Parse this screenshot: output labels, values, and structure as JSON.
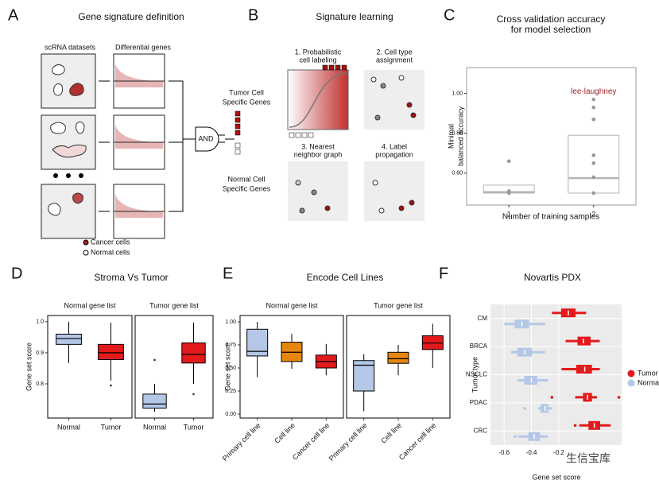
{
  "panels": {
    "a": {
      "letter": "A",
      "title": "Gene signature definition",
      "col1": "scRNA datasets",
      "col2": "Differential genes",
      "tumor": [
        "Tumor Cell",
        "Specific Genes"
      ],
      "gate": "AND",
      "normal": [
        "Normal Cell",
        "Specific Genes"
      ],
      "legend": [
        "Cancer cells",
        "Normal cells"
      ]
    },
    "b": {
      "letter": "B",
      "title": "Signature learning",
      "steps": [
        [
          "1. Probabilistic",
          "cell labeling"
        ],
        [
          "2. Cell type",
          "assignment"
        ],
        [
          "3. Nearest",
          "neighbor graph"
        ],
        [
          "4. Label",
          "propagation"
        ]
      ]
    }
  },
  "watermark": "生信宝库",
  "chart_data": [
    {
      "type": "box",
      "panel": "C",
      "title": [
        "Cross validation accuracy",
        "for model selection"
      ],
      "xlabel": "Number of training samples",
      "ylabel": [
        "Minimal",
        "balanced accuracy"
      ],
      "ylim": [
        0.44,
        1.13
      ],
      "yticks": [
        {
          "value": 0.6,
          "label": "0.60"
        },
        {
          "value": 0.8,
          "label": "0.80"
        },
        {
          "value": 1.0,
          "label": "1.00"
        }
      ],
      "stroke": "#b5b5b5",
      "annotation": "lee-laughney",
      "facets": [
        {
          "categories": [
            "1",
            "2"
          ],
          "boxes": [
            {
              "color": "#ffffff",
              "min": 0.5,
              "q1": 0.5,
              "median": 0.505,
              "q3": 0.54,
              "max": 0.54,
              "points": [
                0.5,
                0.51,
                0.66
              ]
            },
            {
              "color": "#ffffff",
              "min": 0.5,
              "q1": 0.5,
              "median": 0.575,
              "q3": 0.79,
              "max": 0.79,
              "points": [
                0.97,
                0.93,
                0.87,
                0.69,
                0.65,
                0.58,
                0.5
              ]
            }
          ]
        }
      ]
    },
    {
      "type": "box",
      "panel": "D",
      "title": "Stroma Vs Tumor",
      "ylabel": "Gene set score",
      "ylim": [
        0.69,
        1.02
      ],
      "yticks": [
        0.8,
        0.9,
        {
          "value": 1.0,
          "label": "1.0"
        }
      ],
      "stroke": "#000000",
      "facets": [
        {
          "title": "Normal gene list",
          "categories": [
            "Normal",
            "Tumor"
          ],
          "boxes": [
            {
              "color": "#b4c7e7",
              "min": 0.867,
              "q1": 0.927,
              "median": 0.946,
              "q3": 0.96,
              "max": 1.0,
              "outliers": []
            },
            {
              "color": "#e31a1c",
              "min": 0.81,
              "q1": 0.878,
              "median": 0.9,
              "q3": 0.927,
              "max": 0.997,
              "outliers": [
                0.795
              ]
            }
          ]
        },
        {
          "title": "Tumor gene list",
          "categories": [
            "Normal",
            "Tumor"
          ],
          "boxes": [
            {
              "color": "#b4c7e7",
              "min": 0.71,
              "q1": 0.722,
              "median": 0.735,
              "q3": 0.767,
              "max": 0.8,
              "outliers": [
                0.877
              ]
            },
            {
              "color": "#e31a1c",
              "min": 0.8,
              "q1": 0.867,
              "median": 0.895,
              "q3": 0.932,
              "max": 0.997,
              "outliers": [
                0.767
              ]
            }
          ]
        }
      ]
    },
    {
      "type": "box",
      "panel": "E",
      "title": "Encode Cell Lines",
      "ylabel": "Gene set score",
      "rotate_labels": true,
      "ylim": [
        -0.043,
        1.069
      ],
      "yticks": [
        {
          "value": 0,
          "label": "0.00"
        },
        {
          "value": 0.25,
          "label": "0.25"
        },
        {
          "value": 0.5,
          "label": "0.50"
        },
        {
          "value": 0.75,
          "label": "0.75"
        },
        {
          "value": 1.0,
          "label": "1.00"
        }
      ],
      "stroke": "#000000",
      "facets": [
        {
          "title": "Normal gene list",
          "categories": [
            "Primary cell line",
            "Cell line",
            "Cancer cell line"
          ],
          "boxes": [
            {
              "color": "#b4c7e7",
              "min": 0.4,
              "q1": 0.63,
              "median": 0.68,
              "q3": 0.92,
              "max": 1.0,
              "outliers": []
            },
            {
              "color": "#e6860f",
              "min": 0.49,
              "q1": 0.57,
              "median": 0.67,
              "q3": 0.78,
              "max": 0.87,
              "outliers": []
            },
            {
              "color": "#e31a1c",
              "min": 0.42,
              "q1": 0.5,
              "median": 0.57,
              "q3": 0.64,
              "max": 0.76,
              "outliers": []
            }
          ]
        },
        {
          "title": "Tumor gene list",
          "categories": [
            "Primary cell line",
            "Cell line",
            "Cancer cell line"
          ],
          "boxes": [
            {
              "color": "#b4c7e7",
              "min": 0.03,
              "q1": 0.25,
              "median": 0.53,
              "q3": 0.58,
              "max": 0.65,
              "outliers": []
            },
            {
              "color": "#e6860f",
              "min": 0.42,
              "q1": 0.55,
              "median": 0.6,
              "q3": 0.67,
              "max": 0.75,
              "outliers": []
            },
            {
              "color": "#e31a1c",
              "min": 0.5,
              "q1": 0.7,
              "median": 0.77,
              "q3": 0.85,
              "max": 0.98,
              "outliers": []
            }
          ]
        }
      ]
    },
    {
      "type": "hbox",
      "panel": "F",
      "title": "Novartis PDX",
      "xlabel": "Gene set score",
      "ylabel": "Tumor type",
      "xlim": [
        -0.7,
        0.26
      ],
      "xticks": [
        -0.6,
        -0.4,
        -0.2
      ],
      "grid": true,
      "legend": "right",
      "categories": [
        "CM",
        "BRCA",
        "NSCLC",
        "PDAC",
        "CRC"
      ],
      "series": [
        {
          "name": "Tumor",
          "color": "#e31a1c",
          "boxes": [
            {
              "min": -0.25,
              "q1": -0.18,
              "median": -0.13,
              "q3": -0.08,
              "max": 0.0,
              "outliers": []
            },
            {
              "min": -0.15,
              "q1": -0.06,
              "median": -0.02,
              "q3": 0.03,
              "max": 0.1,
              "outliers": []
            },
            {
              "min": -0.18,
              "q1": -0.07,
              "median": -0.01,
              "q3": 0.04,
              "max": 0.1,
              "outliers": []
            },
            {
              "min": -0.08,
              "q1": -0.02,
              "median": 0.01,
              "q3": 0.04,
              "max": 0.08,
              "outliers": [
                -0.25,
                0.24
              ]
            },
            {
              "min": -0.05,
              "q1": 0.02,
              "median": 0.06,
              "q3": 0.1,
              "max": 0.18,
              "outliers": [
                -0.08
              ]
            }
          ]
        },
        {
          "name": "Normal",
          "color": "#b4c7e7",
          "boxes": [
            {
              "min": -0.6,
              "q1": -0.52,
              "median": -0.47,
              "q3": -0.42,
              "max": -0.3,
              "outliers": []
            },
            {
              "min": -0.55,
              "q1": -0.5,
              "median": -0.45,
              "q3": -0.4,
              "max": -0.3,
              "outliers": []
            },
            {
              "min": -0.5,
              "q1": -0.45,
              "median": -0.4,
              "q3": -0.36,
              "max": -0.28,
              "outliers": []
            },
            {
              "min": -0.35,
              "q1": -0.33,
              "median": -0.3,
              "q3": -0.28,
              "max": -0.25,
              "outliers": [
                -0.45
              ]
            },
            {
              "min": -0.5,
              "q1": -0.42,
              "median": -0.38,
              "q3": -0.34,
              "max": -0.28,
              "outliers": [
                -0.52
              ]
            }
          ]
        }
      ]
    }
  ]
}
